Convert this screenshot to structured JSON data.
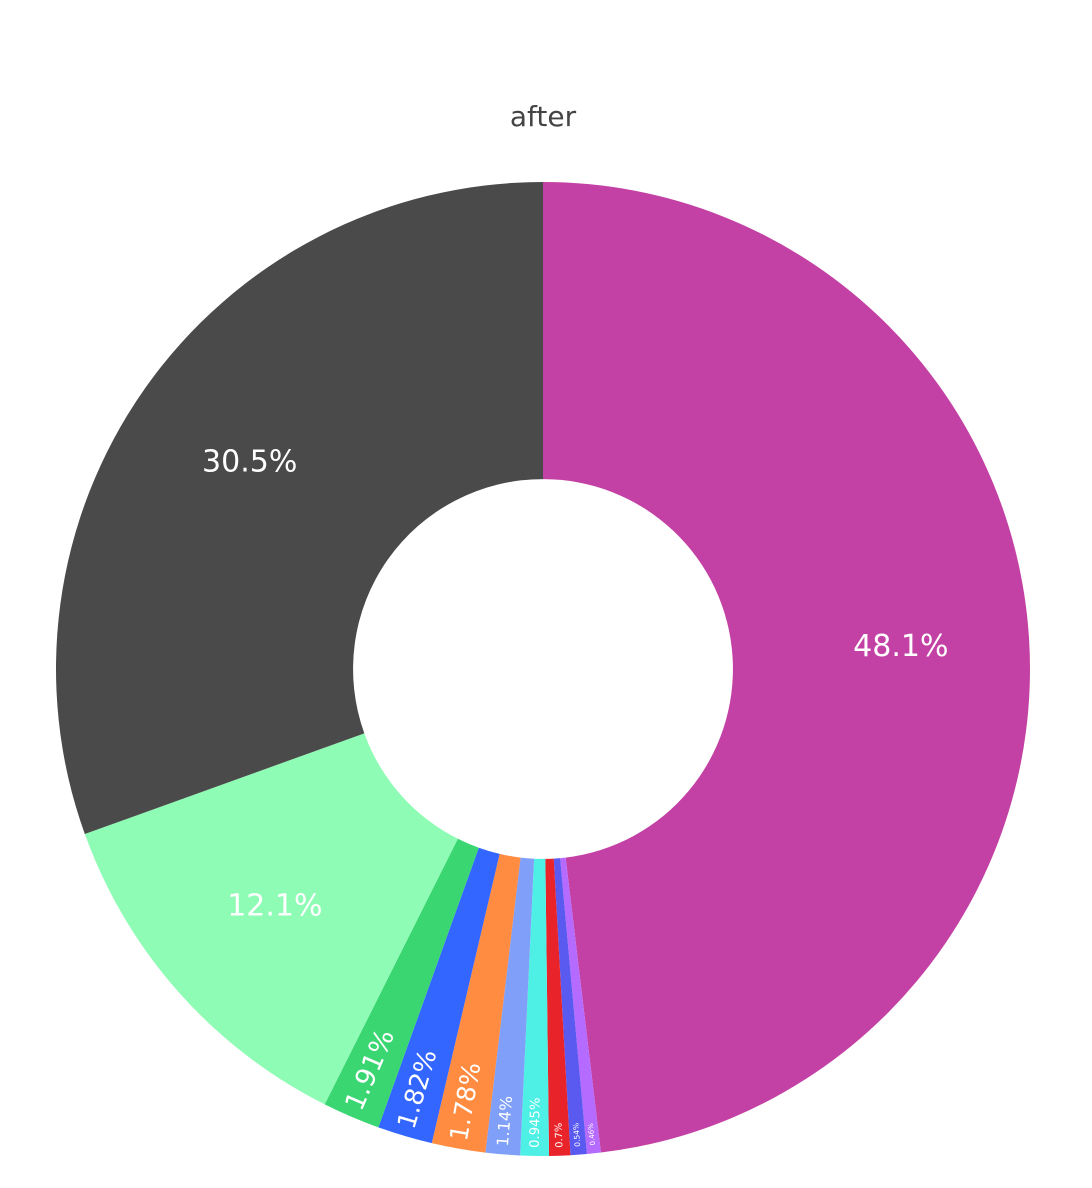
{
  "chart_data": {
    "type": "pie",
    "title": "after",
    "hole": 0.39,
    "values": [
      48.1,
      0.46,
      0.54,
      0.7,
      0.945,
      1.14,
      1.78,
      1.82,
      1.91,
      12.1,
      30.5
    ],
    "value_labels": [
      "48.1%",
      "0.46%",
      "0.54%",
      "0.7%",
      "0.945%",
      "1.14%",
      "1.78%",
      "1.82%",
      "1.91%",
      "12.1%",
      "30.5%"
    ],
    "colors": [
      "#c341a5",
      "#b56bff",
      "#5a5af0",
      "#e8232a",
      "#4ef0e6",
      "#7f9ff8",
      "#ff8c40",
      "#3366ff",
      "#3ad672",
      "#8ffcb5",
      "#4a4a4a"
    ]
  }
}
